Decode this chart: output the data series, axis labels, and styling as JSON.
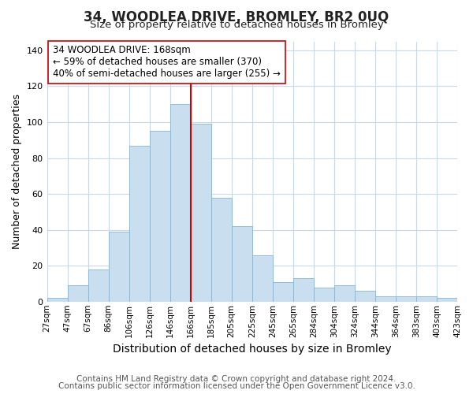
{
  "title": "34, WOODLEA DRIVE, BROMLEY, BR2 0UQ",
  "subtitle": "Size of property relative to detached houses in Bromley",
  "xlabel": "Distribution of detached houses by size in Bromley",
  "ylabel": "Number of detached properties",
  "bin_edges": [
    "27sqm",
    "47sqm",
    "67sqm",
    "86sqm",
    "106sqm",
    "126sqm",
    "146sqm",
    "166sqm",
    "185sqm",
    "205sqm",
    "225sqm",
    "245sqm",
    "265sqm",
    "284sqm",
    "304sqm",
    "324sqm",
    "344sqm",
    "364sqm",
    "383sqm",
    "403sqm",
    "423sqm"
  ],
  "bar_values": [
    2,
    9,
    18,
    39,
    87,
    95,
    110,
    99,
    58,
    42,
    26,
    11,
    13,
    8,
    9,
    6,
    3,
    3,
    3,
    2
  ],
  "bar_color": "#c9dff0",
  "bar_edge_color": "#8ab4d0",
  "vline_index": 7,
  "vline_color": "#cc0000",
  "annotation_text": "34 WOODLEA DRIVE: 168sqm\n← 59% of detached houses are smaller (370)\n40% of semi-detached houses are larger (255) →",
  "annotation_box_facecolor": "#ffffff",
  "annotation_box_edgecolor": "#cc0000",
  "ylim": [
    0,
    145
  ],
  "yticks": [
    0,
    20,
    40,
    60,
    80,
    100,
    120,
    140
  ],
  "background_color": "#ffffff",
  "plot_bg_color": "#ffffff",
  "grid_color": "#c8d8e8",
  "footer_line1": "Contains HM Land Registry data © Crown copyright and database right 2024.",
  "footer_line2": "Contains public sector information licensed under the Open Government Licence v3.0.",
  "title_fontsize": 12,
  "subtitle_fontsize": 9.5,
  "xlabel_fontsize": 10,
  "ylabel_fontsize": 9,
  "tick_fontsize": 7.5,
  "annotation_fontsize": 8.5,
  "footer_fontsize": 7.5
}
